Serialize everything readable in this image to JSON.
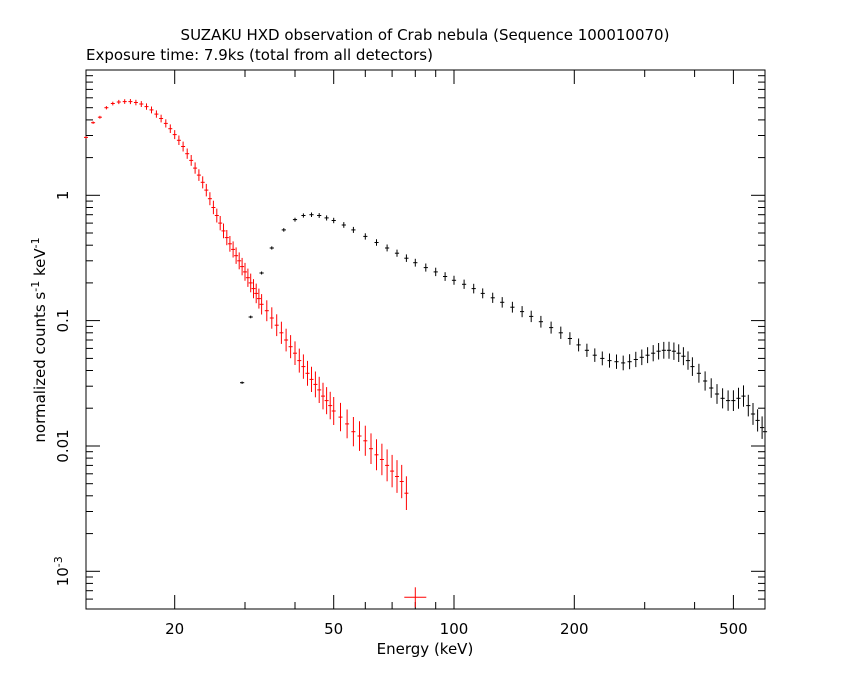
{
  "colors": {
    "background": "#ffffff",
    "axes": "#000000",
    "series_black": "#000000",
    "series_red": "#ff0000"
  },
  "chart_data": {
    "type": "scatter",
    "title": "SUZAKU HXD observation of Crab nebula (Sequence 100010070)",
    "subtitle": "Exposure time: 7.9ks (total from all detectors)",
    "xlabel": "Energy (keV)",
    "ylabel_main": "normalized counts s",
    "ylabel_sup1": "-1",
    "ylabel_mid": " keV",
    "ylabel_sup2": "-1",
    "x_scale": "log",
    "y_scale": "log",
    "xlim": [
      12,
      600
    ],
    "ylim": [
      0.0005,
      10
    ],
    "grid": false,
    "legend": "none",
    "x_major_ticks": [
      {
        "value": 20,
        "label": "20"
      },
      {
        "value": 50,
        "label": "50"
      },
      {
        "value": 100,
        "label": "100"
      },
      {
        "value": 200,
        "label": "200"
      },
      {
        "value": 500,
        "label": "500"
      }
    ],
    "y_major_ticks": [
      {
        "value": 1,
        "label": "1"
      },
      {
        "value": 0.1,
        "label": "0.1"
      },
      {
        "value": 0.01,
        "label": "0.01"
      }
    ],
    "y_tick_1e3": {
      "value": 0.001,
      "base": "10",
      "exp": "-3"
    },
    "series_red_points": [
      [
        12,
        2.9
      ],
      [
        12.5,
        3.8
      ],
      [
        13,
        4.2
      ],
      [
        13.5,
        5.0
      ],
      [
        14,
        5.4
      ],
      [
        14.5,
        5.55
      ],
      [
        15,
        5.6
      ],
      [
        15.5,
        5.6
      ],
      [
        16,
        5.5
      ],
      [
        16.5,
        5.35
      ],
      [
        17,
        5.1
      ],
      [
        17.5,
        4.8
      ],
      [
        18,
        4.45
      ],
      [
        18.5,
        4.1
      ],
      [
        19,
        3.75
      ],
      [
        19.5,
        3.4
      ],
      [
        20,
        3.05
      ],
      [
        20.5,
        2.75
      ],
      [
        21,
        2.45
      ],
      [
        21.5,
        2.15
      ],
      [
        22,
        1.9
      ],
      [
        22.5,
        1.65
      ],
      [
        23,
        1.45
      ],
      [
        23.5,
        1.27
      ],
      [
        24,
        1.1
      ],
      [
        24.5,
        0.94
      ],
      [
        25,
        0.8
      ],
      [
        25.5,
        0.69
      ],
      [
        26,
        0.6
      ],
      [
        26.5,
        0.52
      ],
      [
        27,
        0.46
      ],
      [
        27.5,
        0.41
      ],
      [
        28,
        0.37
      ],
      [
        28.5,
        0.33
      ],
      [
        29,
        0.3
      ],
      [
        29.5,
        0.27
      ],
      [
        30,
        0.245
      ],
      [
        30.5,
        0.22
      ],
      [
        31,
        0.2
      ],
      [
        31.5,
        0.18
      ],
      [
        32,
        0.165
      ],
      [
        32.5,
        0.15
      ],
      [
        33,
        0.135
      ],
      [
        34,
        0.12
      ],
      [
        35,
        0.105
      ],
      [
        36,
        0.092
      ],
      [
        37,
        0.08
      ],
      [
        38,
        0.07
      ],
      [
        39,
        0.062
      ],
      [
        40,
        0.055
      ],
      [
        41,
        0.048
      ],
      [
        42,
        0.043
      ],
      [
        43,
        0.038
      ],
      [
        44,
        0.034
      ],
      [
        45,
        0.031
      ],
      [
        46,
        0.028
      ],
      [
        47,
        0.025
      ],
      [
        48,
        0.023
      ],
      [
        49,
        0.021
      ],
      [
        50,
        0.019
      ],
      [
        52,
        0.017
      ],
      [
        54,
        0.015
      ],
      [
        56,
        0.013
      ],
      [
        58,
        0.012
      ],
      [
        60,
        0.011
      ],
      [
        62,
        0.0095
      ],
      [
        64,
        0.0085
      ],
      [
        66,
        0.0078
      ],
      [
        68,
        0.007
      ],
      [
        70,
        0.0063
      ],
      [
        72,
        0.0057
      ],
      [
        74,
        0.0052
      ],
      [
        76,
        0.0042
      ]
    ],
    "series_red_outlier": [
      80,
      0.00062
    ],
    "series_black_points": [
      [
        29.5,
        0.032
      ],
      [
        31,
        0.107
      ],
      [
        33,
        0.24
      ],
      [
        35,
        0.38
      ],
      [
        37.5,
        0.53
      ],
      [
        40,
        0.64
      ],
      [
        42,
        0.69
      ],
      [
        44,
        0.7
      ],
      [
        46,
        0.69
      ],
      [
        48,
        0.66
      ],
      [
        50,
        0.63
      ],
      [
        53,
        0.58
      ],
      [
        56,
        0.53
      ],
      [
        60,
        0.47
      ],
      [
        64,
        0.42
      ],
      [
        68,
        0.38
      ],
      [
        72,
        0.345
      ],
      [
        76,
        0.315
      ],
      [
        80,
        0.29
      ],
      [
        85,
        0.265
      ],
      [
        90,
        0.245
      ],
      [
        95,
        0.225
      ],
      [
        100,
        0.21
      ],
      [
        106,
        0.195
      ],
      [
        112,
        0.18
      ],
      [
        118,
        0.165
      ],
      [
        125,
        0.152
      ],
      [
        132,
        0.14
      ],
      [
        140,
        0.128
      ],
      [
        148,
        0.118
      ],
      [
        156,
        0.108
      ],
      [
        165,
        0.098
      ],
      [
        175,
        0.088
      ],
      [
        185,
        0.08
      ],
      [
        195,
        0.072
      ],
      [
        205,
        0.064
      ],
      [
        215,
        0.058
      ],
      [
        225,
        0.053
      ],
      [
        235,
        0.05
      ],
      [
        245,
        0.048
      ],
      [
        255,
        0.047
      ],
      [
        265,
        0.046
      ],
      [
        275,
        0.047
      ],
      [
        285,
        0.049
      ],
      [
        295,
        0.051
      ],
      [
        305,
        0.053
      ],
      [
        315,
        0.055
      ],
      [
        325,
        0.057
      ],
      [
        335,
        0.058
      ],
      [
        345,
        0.058
      ],
      [
        355,
        0.057
      ],
      [
        365,
        0.055
      ],
      [
        375,
        0.052
      ],
      [
        385,
        0.048
      ],
      [
        395,
        0.043
      ],
      [
        410,
        0.038
      ],
      [
        425,
        0.033
      ],
      [
        440,
        0.029
      ],
      [
        455,
        0.026
      ],
      [
        470,
        0.024
      ],
      [
        485,
        0.023
      ],
      [
        500,
        0.023
      ],
      [
        515,
        0.024
      ],
      [
        530,
        0.025
      ],
      [
        545,
        0.021
      ],
      [
        560,
        0.018
      ],
      [
        575,
        0.016
      ],
      [
        590,
        0.014
      ],
      [
        600,
        0.013
      ]
    ]
  }
}
